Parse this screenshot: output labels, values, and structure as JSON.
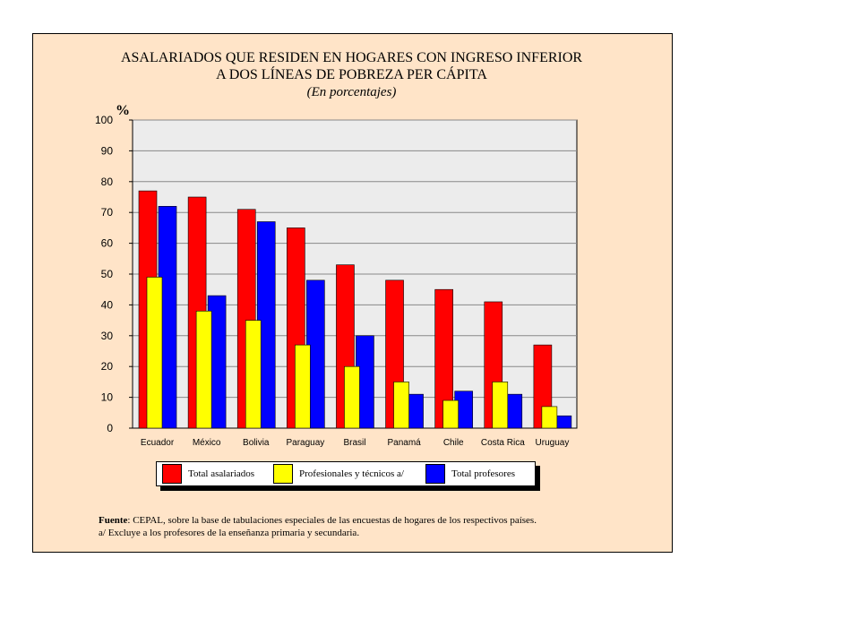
{
  "title_line1": "ASALARIADOS QUE RESIDEN EN HOGARES CON INGRESO INFERIOR",
  "title_line2": "A DOS LÍNEAS DE POBREZA PER CÁPITA",
  "subtitle": "(En porcentajes)",
  "ylabel": "%",
  "legend": {
    "total_asalariados": "Total asalariados",
    "profesionales": "Profesionales y técnicos a/",
    "total_profesores": "Total profesores"
  },
  "footer": {
    "source_label": "Fuente",
    "source_text": ": CEPAL, sobre la base de tabulaciones especiales de las encuestas de hogares de los respectivos países.",
    "note": "a/ Excluye a los profesores de la enseñanza primaria y secundaria."
  },
  "colors": {
    "total_asalariados": "#ff0000",
    "profesionales": "#ffff00",
    "total_profesores": "#0000ff",
    "plot_bg": "#ececec",
    "frame_bg": "#ffe4c8"
  },
  "chart_data": {
    "type": "bar",
    "title": "ASALARIADOS QUE RESIDEN EN HOGARES CON INGRESO INFERIOR A DOS LÍNEAS DE POBREZA PER CÁPITA",
    "subtitle": "(En porcentajes)",
    "ylabel": "%",
    "xlabel": "",
    "ylim": [
      0,
      100
    ],
    "yticks": [
      "100",
      "90",
      "80",
      "70",
      "60",
      "50",
      "40",
      "30",
      "20",
      "10",
      "0"
    ],
    "categories": [
      "Ecuador",
      "México",
      "Bolivia",
      "Paraguay",
      "Brasil",
      "Panamá",
      "Chile",
      "Costa Rica",
      "Uruguay"
    ],
    "series": [
      {
        "name": "Total asalariados",
        "values": [
          77,
          75,
          71,
          65,
          53,
          48,
          45,
          41,
          27
        ]
      },
      {
        "name": "Profesionales y técnicos a/",
        "values": [
          49,
          38,
          35,
          27,
          20,
          15,
          9,
          15,
          7
        ]
      },
      {
        "name": "Total profesores",
        "values": [
          72,
          43,
          67,
          48,
          30,
          11,
          12,
          11,
          4
        ]
      }
    ],
    "grid": true,
    "legend_position": "bottom"
  }
}
